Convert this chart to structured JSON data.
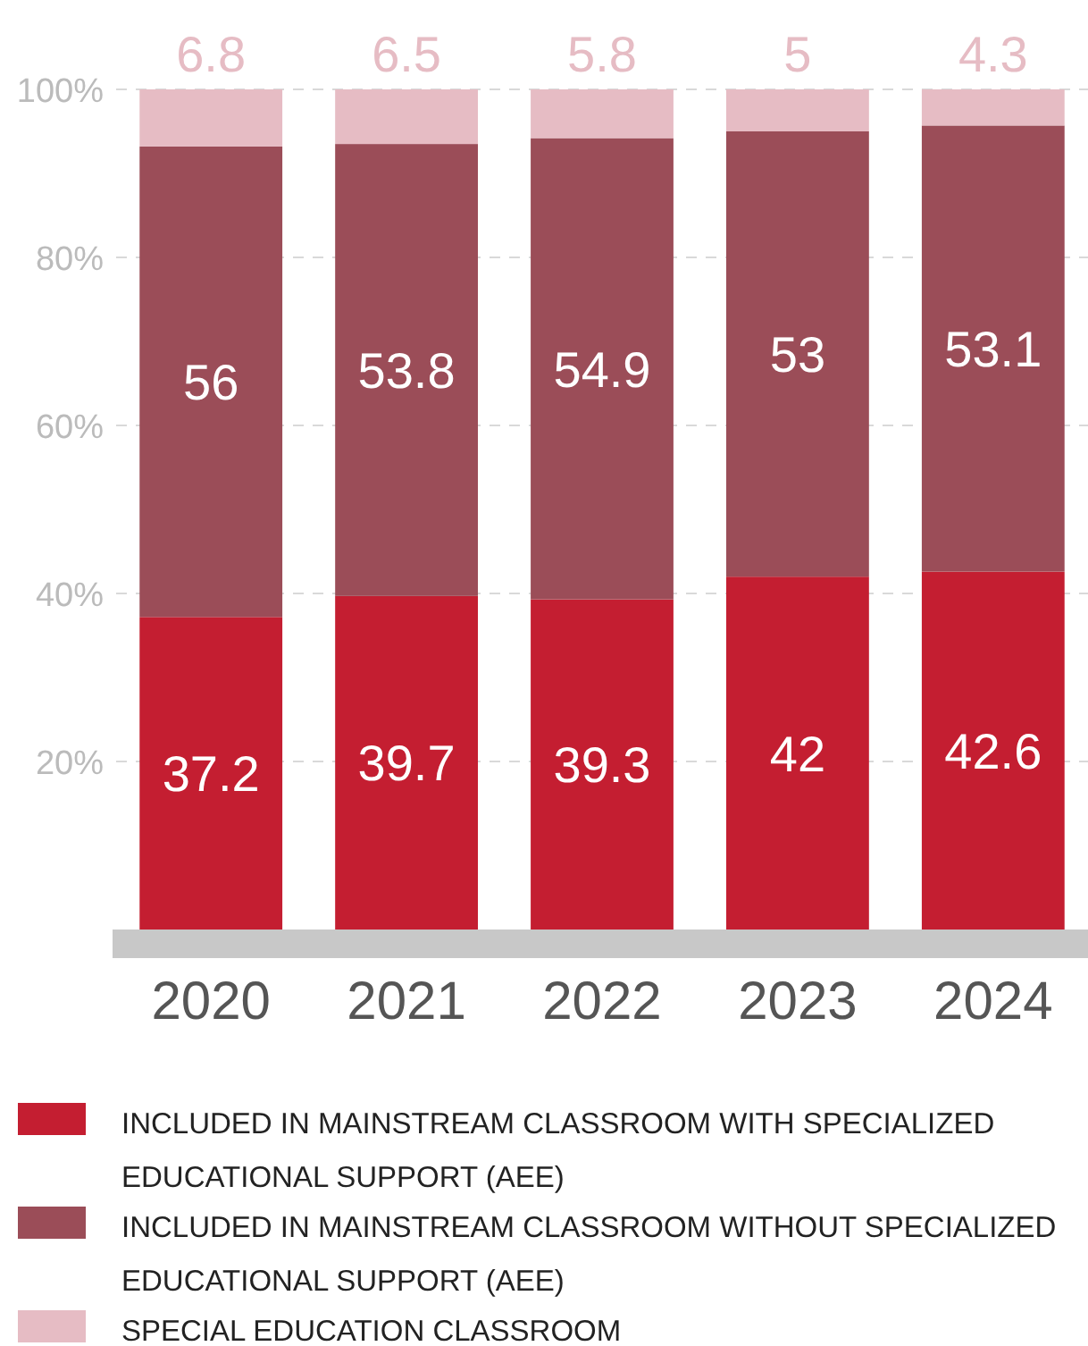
{
  "chart_data": {
    "type": "bar",
    "stacked": true,
    "categories": [
      "2020",
      "2021",
      "2022",
      "2023",
      "2024"
    ],
    "series": [
      {
        "name": "INCLUDED IN MAINSTREAM CLASSROOM WITH SPECIALIZED EDUCATIONAL SUPPORT (AEE)",
        "color": "#c41e31",
        "values": [
          37.2,
          39.7,
          39.3,
          42,
          42.6
        ]
      },
      {
        "name": "INCLUDED IN MAINSTREAM CLASSROOM WITHOUT SPECIALIZED EDUCATIONAL SUPPORT (AEE)",
        "color": "#9b4d58",
        "values": [
          56,
          53.8,
          54.9,
          53,
          53.1
        ]
      },
      {
        "name": "SPECIAL EDUCATION CLASSROOM",
        "color": "#e6bcc4",
        "values": [
          6.8,
          6.5,
          5.8,
          5,
          4.3
        ]
      }
    ],
    "ylim": [
      0,
      100
    ],
    "yticks": [
      {
        "value": 20,
        "label": "20%"
      },
      {
        "value": 40,
        "label": "40%"
      },
      {
        "value": 60,
        "label": "60%"
      },
      {
        "value": 80,
        "label": "80%"
      },
      {
        "value": 100,
        "label": "100%"
      }
    ],
    "grid": "y",
    "legend": "bottom",
    "data_labels": true
  }
}
